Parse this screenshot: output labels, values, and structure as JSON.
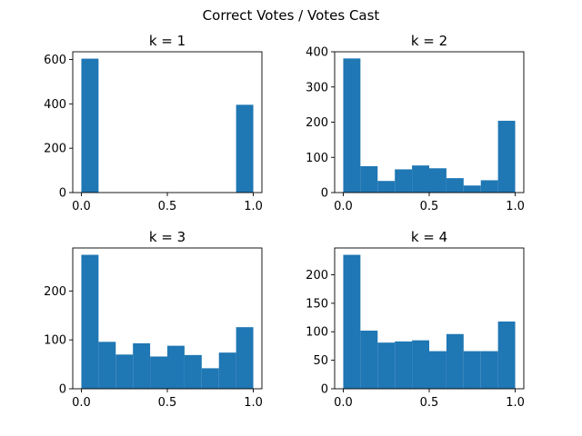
{
  "figure": {
    "suptitle": "Correct Votes / Votes Cast",
    "bar_color": "#1f77b4"
  },
  "chart_data": [
    {
      "type": "bar",
      "title": "k = 1",
      "bin_edges": [
        0.0,
        0.1,
        0.2,
        0.3,
        0.4,
        0.5,
        0.6,
        0.7,
        0.8,
        0.9,
        1.0
      ],
      "values": [
        604,
        0,
        0,
        0,
        0,
        0,
        0,
        0,
        0,
        396
      ],
      "xlim": [
        -0.05,
        1.05
      ],
      "ylim": [
        0,
        635
      ],
      "xticks": [
        0.0,
        0.5,
        1.0
      ],
      "xtick_labels": [
        "0.0",
        "0.5",
        "1.0"
      ],
      "yticks": [
        0,
        200,
        400,
        600
      ],
      "ytick_labels": [
        "0",
        "200",
        "400",
        "600"
      ]
    },
    {
      "type": "bar",
      "title": "k = 2",
      "bin_edges": [
        0.0,
        0.1,
        0.2,
        0.3,
        0.4,
        0.5,
        0.6,
        0.7,
        0.8,
        0.9,
        1.0
      ],
      "values": [
        381,
        75,
        33,
        66,
        77,
        69,
        41,
        20,
        35,
        204
      ],
      "xlim": [
        -0.05,
        1.05
      ],
      "ylim": [
        0,
        400
      ],
      "xticks": [
        0.0,
        0.5,
        1.0
      ],
      "xtick_labels": [
        "0.0",
        "0.5",
        "1.0"
      ],
      "yticks": [
        0,
        100,
        200,
        300,
        400
      ],
      "ytick_labels": [
        "0",
        "100",
        "200",
        "300",
        "400"
      ]
    },
    {
      "type": "bar",
      "title": "k = 3",
      "bin_edges": [
        0.0,
        0.1,
        0.2,
        0.3,
        0.4,
        0.5,
        0.6,
        0.7,
        0.8,
        0.9,
        1.0
      ],
      "values": [
        274,
        96,
        70,
        93,
        66,
        88,
        69,
        42,
        74,
        126
      ],
      "xlim": [
        -0.05,
        1.05
      ],
      "ylim": [
        0,
        288
      ],
      "xticks": [
        0.0,
        0.5,
        1.0
      ],
      "xtick_labels": [
        "0.0",
        "0.5",
        "1.0"
      ],
      "yticks": [
        0,
        100,
        200
      ],
      "ytick_labels": [
        "0",
        "100",
        "200"
      ]
    },
    {
      "type": "bar",
      "title": "k = 4",
      "bin_edges": [
        0.0,
        0.1,
        0.2,
        0.3,
        0.4,
        0.5,
        0.6,
        0.7,
        0.8,
        0.9,
        1.0
      ],
      "values": [
        235,
        102,
        81,
        83,
        85,
        66,
        96,
        66,
        66,
        118
      ],
      "xlim": [
        -0.05,
        1.05
      ],
      "ylim": [
        0,
        247
      ],
      "xticks": [
        0.0,
        0.5,
        1.0
      ],
      "xtick_labels": [
        "0.0",
        "0.5",
        "1.0"
      ],
      "yticks": [
        0,
        50,
        100,
        150,
        200
      ],
      "ytick_labels": [
        "0",
        "50",
        "100",
        "150",
        "200"
      ]
    }
  ]
}
